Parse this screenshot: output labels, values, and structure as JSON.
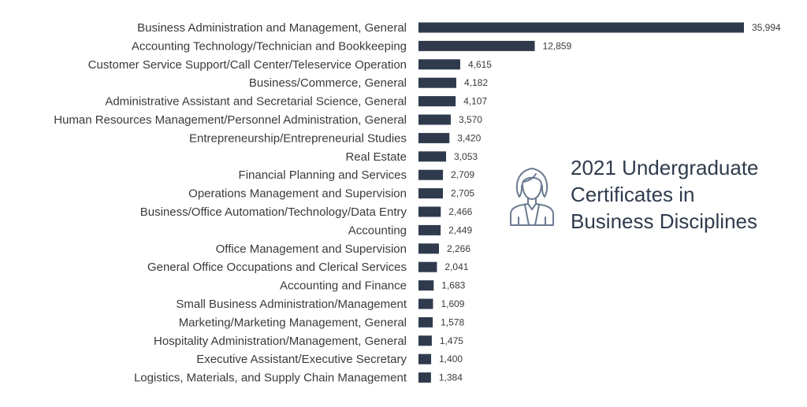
{
  "chart_data": {
    "type": "bar",
    "orientation": "horizontal",
    "title_lines": [
      "2021 Undergraduate",
      "Certificates in",
      "Business Disciplines"
    ],
    "categories": [
      "Business Administration and Management, General",
      "Accounting Technology/Technician and Bookkeeping",
      "Customer Service Support/Call Center/Teleservice Operation",
      "Business/Commerce, General",
      "Administrative Assistant and Secretarial Science, General",
      "Human Resources Management/Personnel Administration, General",
      "Entrepreneurship/Entrepreneurial Studies",
      "Real Estate",
      "Financial Planning and Services",
      "Operations Management and Supervision",
      "Business/Office Automation/Technology/Data Entry",
      "Accounting",
      "Office Management and Supervision",
      "General Office Occupations and Clerical Services",
      "Accounting and Finance",
      "Small Business Administration/Management",
      "Marketing/Marketing Management, General",
      "Hospitality Administration/Management, General",
      "Executive Assistant/Executive Secretary",
      "Logistics, Materials, and Supply Chain Management"
    ],
    "values": [
      35994,
      12859,
      4615,
      4182,
      4107,
      3570,
      3420,
      3053,
      2709,
      2705,
      2466,
      2449,
      2266,
      2041,
      1683,
      1609,
      1578,
      1475,
      1400,
      1384
    ],
    "value_labels": [
      "35,994",
      "12,859",
      "4,615",
      "4,182",
      "4,107",
      "3,570",
      "3,420",
      "3,053",
      "2,709",
      "2,705",
      "2,466",
      "2,449",
      "2,266",
      "2,041",
      "1,683",
      "1,609",
      "1,578",
      "1,475",
      "1,400",
      "1,384"
    ],
    "xlim": [
      0,
      35994
    ],
    "grid": false,
    "legend": "none",
    "bar_color": "#2f3b4d",
    "icon": "woman-avatar-icon"
  }
}
